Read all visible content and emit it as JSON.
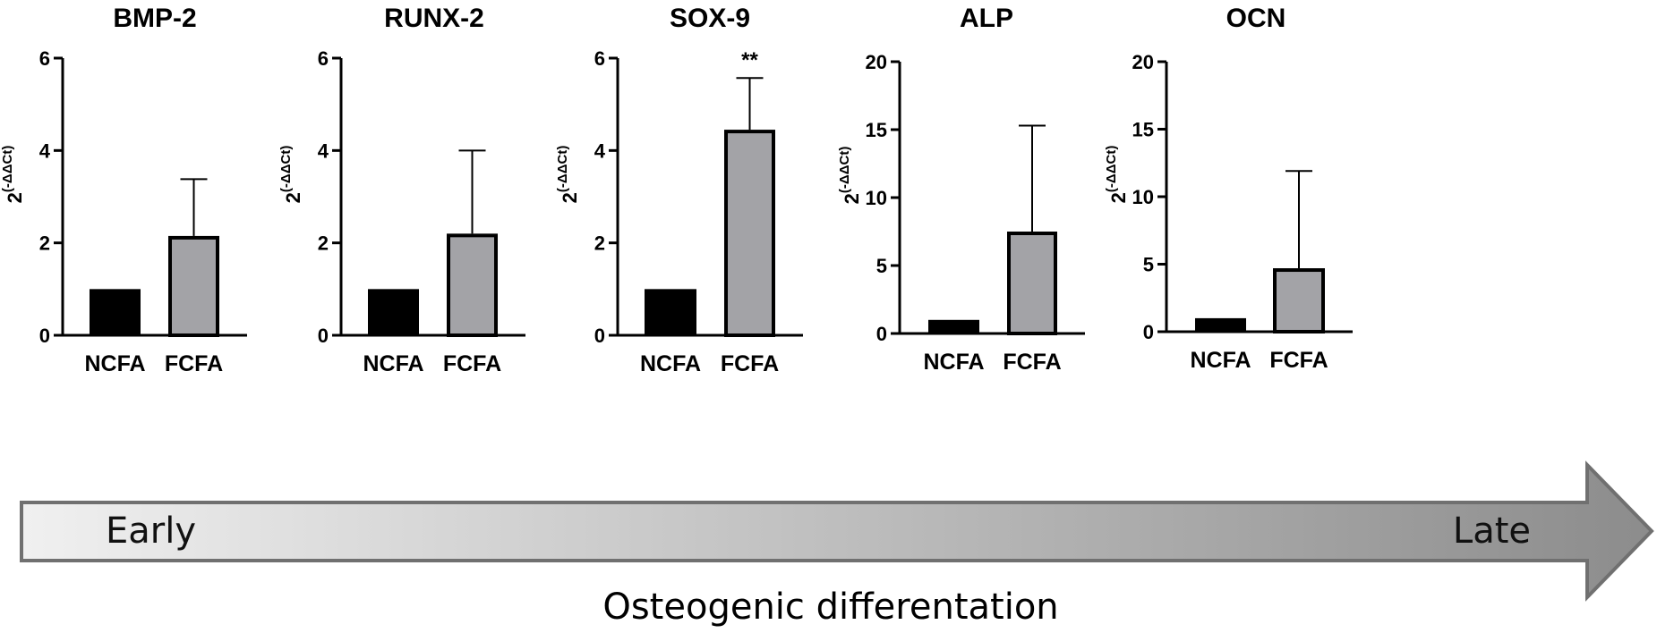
{
  "chart_data": [
    {
      "type": "bar",
      "title": "BMP-2",
      "ylabel": "2^(-ΔΔCt)",
      "ylabel_base": "2",
      "ylabel_exp": "(-ΔΔCt)",
      "ylim": [
        0,
        6
      ],
      "yticks": [
        0,
        2,
        4,
        6
      ],
      "categories": [
        "NCFA",
        "FCFA"
      ],
      "values": [
        1.0,
        2.15
      ],
      "errors": [
        0,
        1.23
      ],
      "significance": [
        "",
        ""
      ],
      "colors": [
        "#000000",
        "#a3a3a7"
      ]
    },
    {
      "type": "bar",
      "title": "RUNX-2",
      "ylabel": "2^(-ΔΔCt)",
      "ylabel_base": "2",
      "ylabel_exp": "(-ΔΔCt)",
      "ylim": [
        0,
        6
      ],
      "yticks": [
        0,
        2,
        4,
        6
      ],
      "categories": [
        "NCFA",
        "FCFA"
      ],
      "values": [
        1.0,
        2.2
      ],
      "errors": [
        0,
        1.8
      ],
      "significance": [
        "",
        ""
      ],
      "colors": [
        "#000000",
        "#a3a3a7"
      ]
    },
    {
      "type": "bar",
      "title": "SOX-9",
      "ylabel": "2^(-ΔΔCt)",
      "ylabel_base": "2",
      "ylabel_exp": "(-ΔΔCt)",
      "ylim": [
        0,
        6
      ],
      "yticks": [
        0,
        2,
        4,
        6
      ],
      "categories": [
        "NCFA",
        "FCFA"
      ],
      "values": [
        1.0,
        4.45
      ],
      "errors": [
        0,
        1.12
      ],
      "significance": [
        "",
        "**"
      ],
      "colors": [
        "#000000",
        "#a3a3a7"
      ]
    },
    {
      "type": "bar",
      "title": "ALP",
      "ylabel": "2^(-ΔΔCt)",
      "ylabel_base": "2",
      "ylabel_exp": "(-ΔΔCt)",
      "ylim": [
        0,
        20
      ],
      "yticks": [
        0,
        5,
        10,
        15,
        20
      ],
      "categories": [
        "NCFA",
        "FCFA"
      ],
      "values": [
        1.0,
        7.5
      ],
      "errors": [
        0,
        7.8
      ],
      "significance": [
        "",
        ""
      ],
      "colors": [
        "#000000",
        "#a3a3a7"
      ]
    },
    {
      "type": "bar",
      "title": "OCN",
      "ylabel": "2^(-ΔΔCt)",
      "ylabel_base": "2",
      "ylabel_exp": "(-ΔΔCt)",
      "ylim": [
        0,
        20
      ],
      "yticks": [
        0,
        5,
        10,
        15,
        20
      ],
      "categories": [
        "NCFA",
        "FCFA"
      ],
      "values": [
        1.0,
        4.7
      ],
      "errors": [
        0,
        7.2
      ],
      "significance": [
        "",
        ""
      ],
      "colors": [
        "#000000",
        "#a3a3a7"
      ]
    }
  ],
  "timeline": {
    "start_label": "Early",
    "end_label": "Late",
    "caption": "Osteogenic differentation",
    "gradient_start": "#f0f0f0",
    "gradient_end": "#8c8c8c",
    "outline": "#707070"
  }
}
